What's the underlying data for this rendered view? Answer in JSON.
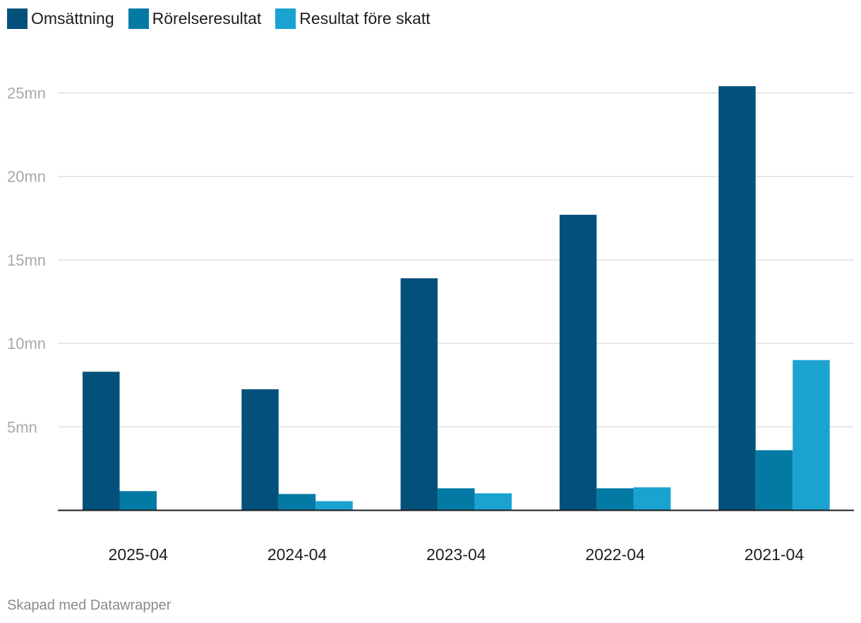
{
  "chart_data": {
    "type": "bar",
    "categories": [
      "2025-04",
      "2024-04",
      "2023-04",
      "2022-04",
      "2021-04"
    ],
    "series": [
      {
        "name": "Omsättning",
        "color": "#03517a",
        "values": [
          8.3,
          7.25,
          13.9,
          17.7,
          25.4
        ]
      },
      {
        "name": "Rörelseresultat",
        "color": "#037aa4",
        "values": [
          1.15,
          0.98,
          1.32,
          1.32,
          3.6
        ]
      },
      {
        "name": "Resultat före skatt",
        "color": "#1aa3d0",
        "values": [
          0,
          0.55,
          1.02,
          1.38,
          9.0
        ]
      }
    ],
    "yticks": [
      5,
      10,
      15,
      20,
      25
    ],
    "ytick_labels": [
      "5mn",
      "10mn",
      "15mn",
      "20mn",
      "25mn"
    ],
    "ylim": [
      0,
      25
    ],
    "grid": true,
    "legend_position": "top-left"
  },
  "footer": {
    "credit": "Skapad med Datawrapper"
  }
}
